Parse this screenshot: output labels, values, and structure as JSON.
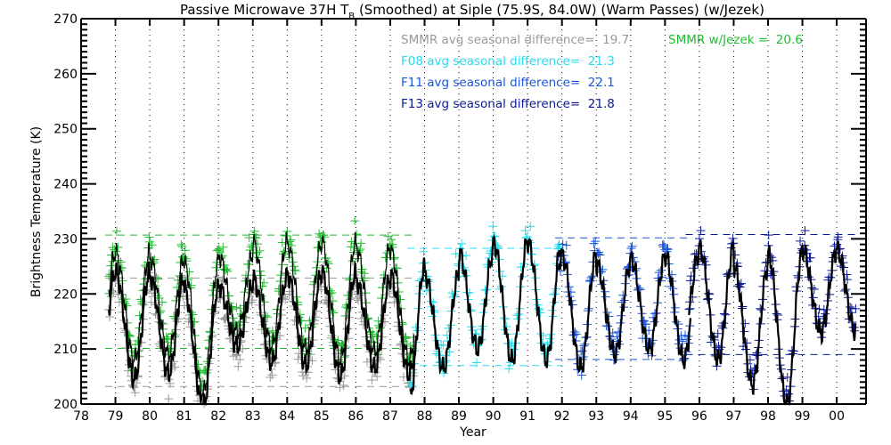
{
  "chart_data": {
    "type": "scatter",
    "title": "Passive Microwave 37H T",
    "title_subscript": "B",
    "title_suffix": " (Smoothed) at Siple (75.9S, 84.0W) (Warm Passes) (w/Jezek)",
    "xlabel": "Year",
    "ylabel": "Brightness Temperature (K)",
    "xlim": [
      78,
      101
    ],
    "ylim": [
      200,
      270
    ],
    "x_ticks": [
      78,
      79,
      80,
      81,
      82,
      83,
      84,
      85,
      86,
      87,
      88,
      89,
      90,
      91,
      92,
      93,
      94,
      95,
      96,
      97,
      98,
      99,
      100
    ],
    "x_tick_labels": [
      "78",
      "79",
      "80",
      "81",
      "82",
      "83",
      "84",
      "85",
      "86",
      "87",
      "88",
      "89",
      "90",
      "91",
      "92",
      "93",
      "94",
      "95",
      "96",
      "97",
      "98",
      "99",
      "00"
    ],
    "y_ticks": [
      200,
      210,
      220,
      230,
      240,
      250,
      260,
      270
    ],
    "y_tick_labels": [
      "200",
      "210",
      "220",
      "230",
      "240",
      "250",
      "260",
      "270"
    ],
    "y_minor_step": 1,
    "grid": "vertical-dotted",
    "marker": "plus",
    "series": [
      {
        "name": "SMMR",
        "color": "#999999",
        "x_range": [
          78.8,
          87.7
        ],
        "annual_peaks": [
          225.5,
          224.5,
          222.5,
          223.0,
          224.5,
          225.0,
          225.5,
          224.0,
          225.0
        ],
        "annual_troughs": [
          206.0,
          207.0,
          201.0,
          212.0,
          209.0,
          208.5,
          206.5,
          208.0,
          207.0
        ],
        "offset_from_smoothed": -2.5,
        "dashed_levels": [
          222.9,
          203.2
        ]
      },
      {
        "name": "SMMR w/Jezek",
        "color": "#22bb33",
        "x_range": [
          78.8,
          87.7
        ],
        "annual_peaks": [
          228.5,
          227.5,
          226.5,
          228.0,
          230.5,
          230.0,
          230.5,
          229.5,
          229.0
        ],
        "annual_troughs": [
          209.0,
          210.0,
          203.0,
          214.0,
          211.5,
          211.0,
          209.0,
          210.5,
          209.0
        ],
        "offset_from_smoothed": 0,
        "dashed_levels": [
          230.7,
          210.1
        ]
      },
      {
        "name": "F08",
        "color": "#22ddee",
        "x_range": [
          87.6,
          91.95
        ],
        "annual_peaks": [
          226.0,
          224.5,
          228.5,
          230.5
        ],
        "annual_troughs": [
          201.5,
          207.5,
          211.0,
          209.0
        ],
        "offset_from_smoothed": 0,
        "dashed_levels": [
          228.3,
          207.0
        ]
      },
      {
        "name": "F11",
        "color": "#1a55dd",
        "x_range": [
          91.9,
          95.75
        ],
        "annual_peaks": [
          228.0,
          226.5,
          227.5,
          228.0
        ],
        "annual_troughs": [
          207.5,
          210.0,
          211.0,
          209.0
        ],
        "offset_from_smoothed": 0,
        "dashed_levels": [
          230.2,
          208.1
        ]
      },
      {
        "name": "F13",
        "color": "#0a1a99",
        "x_range": [
          95.7,
          100.55
        ],
        "annual_peaks": [
          228.5,
          229.5,
          226.0,
          228.5,
          229.0
        ],
        "annual_troughs": [
          214.0,
          209.0,
          204.5,
          201.0,
          214.0
        ],
        "offset_from_smoothed": 0,
        "dashed_levels": [
          230.8,
          209.0
        ]
      }
    ],
    "smoothed_line": {
      "name": "Smoothed",
      "color": "#000000"
    },
    "annotations": [
      {
        "text": "SMMR avg seasonal difference=  19.7",
        "color": "#999999"
      },
      {
        "text": "SMMR w/Jezek =  20.6",
        "color": "#22bb33"
      },
      {
        "text": "F08 avg seasonal difference=  21.3",
        "color": "#22ddee"
      },
      {
        "text": "F11 avg seasonal difference=  22.1",
        "color": "#1a55dd"
      },
      {
        "text": "F13 avg seasonal difference=  21.8",
        "color": "#0a1a99"
      }
    ],
    "seasonal_differences": {
      "SMMR": 19.7,
      "SMMR w/Jezek": 20.6,
      "F08": 21.3,
      "F11": 22.1,
      "F13": 21.8
    }
  }
}
